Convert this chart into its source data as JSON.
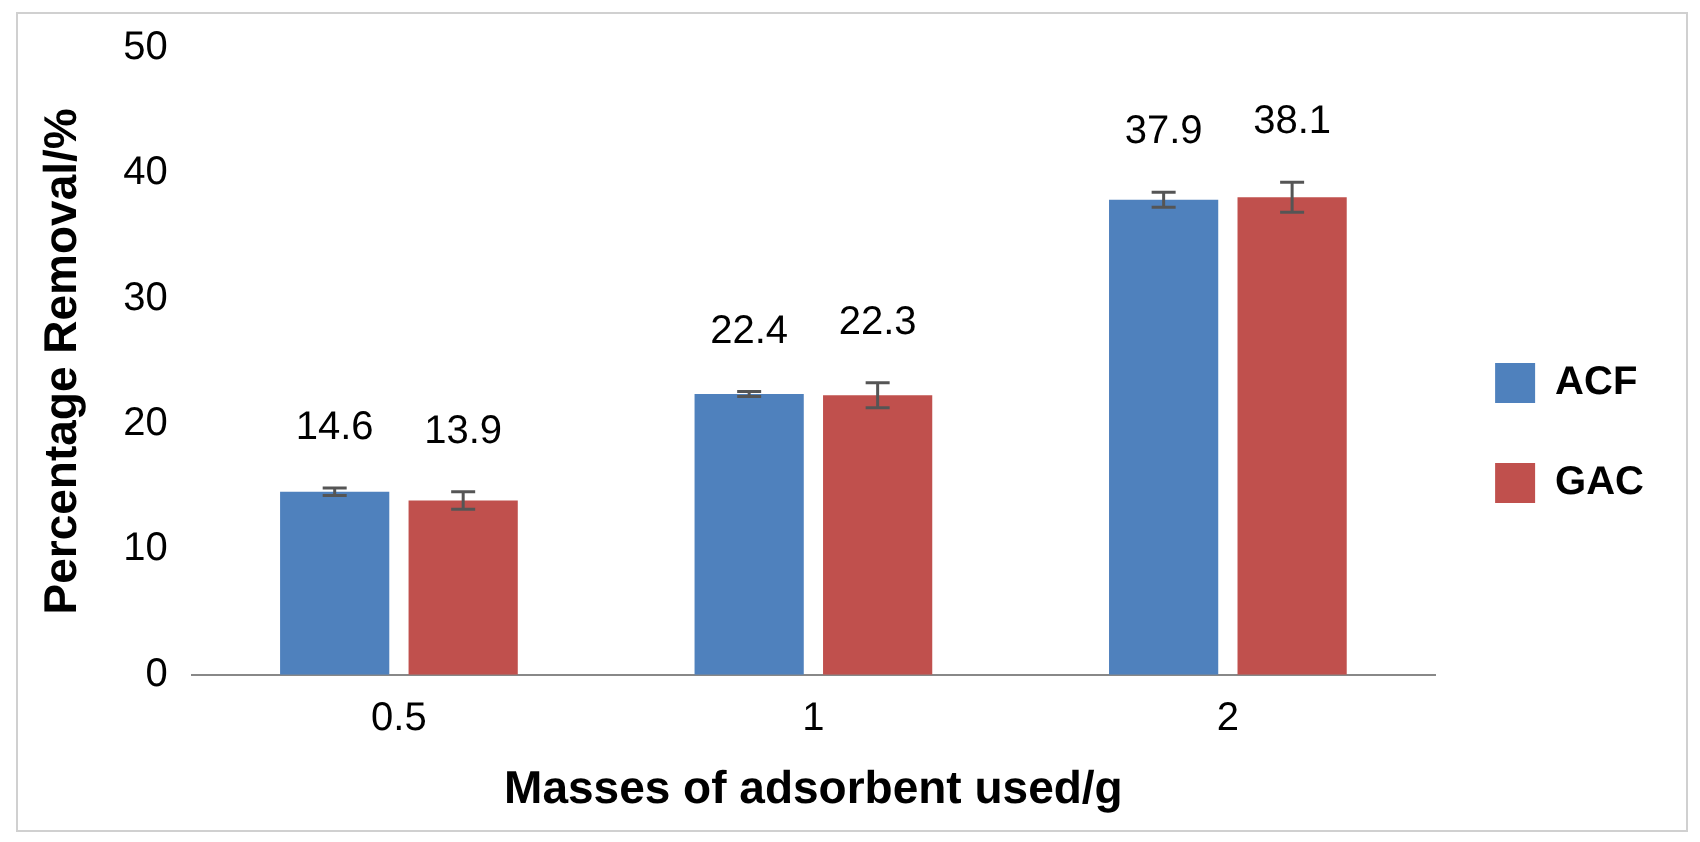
{
  "chart_data": {
    "type": "bar",
    "xlabel": "Masses of adsorbent used/g",
    "ylabel": "Percentage Removal/%",
    "categories": [
      "0.5",
      "1",
      "2"
    ],
    "series": [
      {
        "name": "ACF",
        "color": "#4f81bd",
        "values": [
          14.6,
          22.4,
          37.9
        ],
        "errors": [
          0.3,
          0.2,
          0.6
        ]
      },
      {
        "name": "GAC",
        "color": "#c0504d",
        "values": [
          13.9,
          22.3,
          38.1
        ],
        "errors": [
          0.7,
          1.0,
          1.2
        ]
      }
    ],
    "ylim": [
      0,
      50
    ],
    "yticks": [
      0,
      10,
      20,
      30,
      40,
      50
    ],
    "grid": false,
    "legend": "right",
    "data_labels": true
  }
}
